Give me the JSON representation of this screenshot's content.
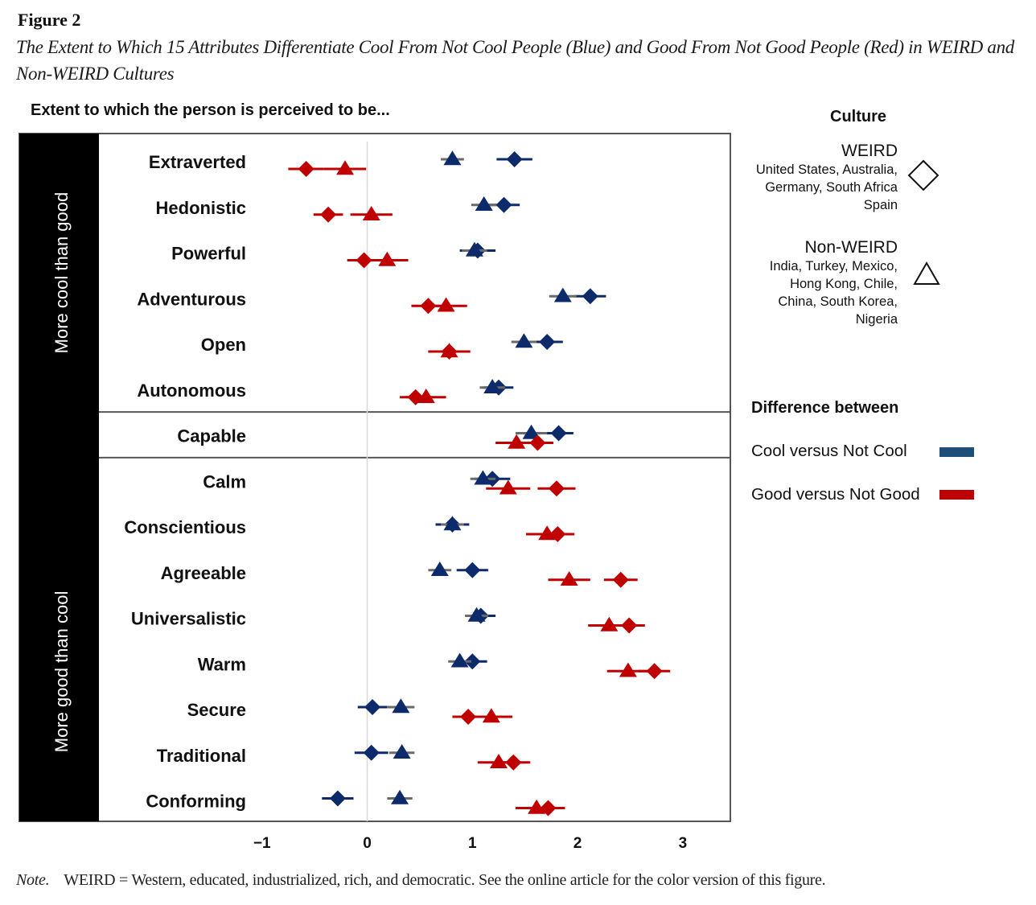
{
  "figure_label": "Figure 2",
  "figure_title": "The Extent to Which 15 Attributes Differentiate Cool From Not Cool People (Blue) and Good From Not Good People (Red) in WEIRD and Non-WEIRD Cultures",
  "note_label": "Note.",
  "note_text": "WEIRD = Western, educated, industrialized, rich, and democratic. See the online article for the color version of this figure.",
  "legend": {
    "culture_title": "Culture",
    "weird_name": "WEIRD",
    "weird_countries": [
      "United States, Australia,",
      "Germany, South Africa",
      "Spain"
    ],
    "weird_marker": "diamond-outline",
    "nonweird_name": "Non-WEIRD",
    "nonweird_countries": [
      "India, Turkey, Mexico,",
      "Hong Kong, Chile,",
      "China, South Korea,",
      "Nigeria"
    ],
    "nonweird_marker": "triangle-outline",
    "difference_title": "Difference between",
    "cool_label": "Cool versus Not Cool",
    "good_label": "Good versus Not Good",
    "cool_color": "#1f4e79",
    "good_color": "#c00000"
  },
  "chart_data": {
    "type": "scatter",
    "subtype": "dot-plot with error bars",
    "title": "Extent to which the person is perceived to be...",
    "xlabel": "",
    "ylabel": "",
    "xlim": [
      -1.05,
      3.4
    ],
    "xticks": [
      -1,
      0,
      1,
      2,
      3
    ],
    "xtick_labels": [
      "−1",
      "0",
      "1",
      "2",
      "3"
    ],
    "reference_line": 0,
    "groups": [
      {
        "label": "More cool than good",
        "attributes": [
          "Extraverted",
          "Hedonistic",
          "Powerful",
          "Adventurous",
          "Open",
          "Autonomous"
        ]
      },
      {
        "label": "",
        "attributes": [
          "Capable"
        ]
      },
      {
        "label": "More good than cool",
        "attributes": [
          "Calm",
          "Conscientious",
          "Agreeable",
          "Universalistic",
          "Warm",
          "Secure",
          "Traditional",
          "Conforming"
        ]
      }
    ],
    "categories": [
      "Extraverted",
      "Hedonistic",
      "Powerful",
      "Adventurous",
      "Open",
      "Autonomous",
      "Capable",
      "Calm",
      "Conscientious",
      "Agreeable",
      "Universalistic",
      "Warm",
      "Secure",
      "Traditional",
      "Conforming"
    ],
    "series": [
      {
        "name": "Cool versus Not Cool — WEIRD",
        "difference": "cool",
        "culture": "WEIRD",
        "marker": "diamond",
        "color": "#0d2a6b",
        "values": [
          1.4,
          1.3,
          1.05,
          2.12,
          1.71,
          1.25,
          1.82,
          1.19,
          0.81,
          1.0,
          1.08,
          1.0,
          0.05,
          0.04,
          -0.28
        ],
        "ci": [
          0.17,
          0.15,
          0.17,
          0.15,
          0.15,
          0.14,
          0.14,
          0.17,
          0.16,
          0.15,
          0.14,
          0.14,
          0.14,
          0.16,
          0.15
        ]
      },
      {
        "name": "Cool versus Not Cool — Non-WEIRD",
        "difference": "cool",
        "culture": "Non-WEIRD",
        "marker": "triangle",
        "color": "#0d2a6b",
        "values": [
          0.81,
          1.11,
          1.02,
          1.86,
          1.49,
          1.19,
          1.56,
          1.1,
          0.81,
          0.69,
          1.04,
          0.88,
          0.32,
          0.33,
          0.31
        ],
        "ci": [
          0.11,
          0.12,
          0.12,
          0.13,
          0.12,
          0.12,
          0.15,
          0.12,
          0.11,
          0.11,
          0.11,
          0.11,
          0.13,
          0.12,
          0.12
        ]
      },
      {
        "name": "Good versus Not Good — WEIRD",
        "difference": "good",
        "culture": "WEIRD",
        "marker": "diamond",
        "color": "#c00000",
        "values": [
          -0.58,
          -0.37,
          -0.03,
          0.58,
          0.78,
          0.46,
          1.62,
          1.8,
          1.81,
          2.41,
          2.49,
          2.73,
          0.96,
          1.39,
          1.72
        ],
        "ci": [
          0.17,
          0.14,
          0.16,
          0.16,
          0.16,
          0.15,
          0.15,
          0.18,
          0.16,
          0.16,
          0.15,
          0.15,
          0.15,
          0.16,
          0.16
        ]
      },
      {
        "name": "Good versus Not Good — Non-WEIRD",
        "difference": "good",
        "culture": "Non-WEIRD",
        "marker": "triangle",
        "color": "#c00000",
        "values": [
          -0.21,
          0.04,
          0.19,
          0.75,
          0.78,
          0.56,
          1.42,
          1.34,
          1.71,
          1.92,
          2.3,
          2.48,
          1.18,
          1.25,
          1.61
        ],
        "ci": [
          0.2,
          0.2,
          0.2,
          0.2,
          0.2,
          0.19,
          0.2,
          0.21,
          0.2,
          0.2,
          0.2,
          0.2,
          0.2,
          0.2,
          0.2
        ]
      }
    ]
  }
}
